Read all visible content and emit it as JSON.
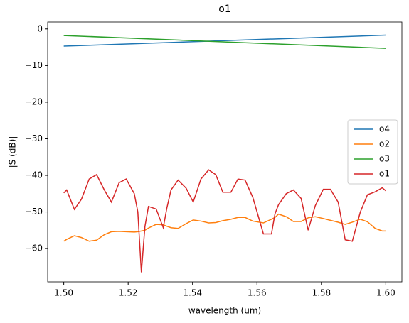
{
  "chart_data": {
    "type": "line",
    "title": "o1",
    "xlabel": "wavelength (um)",
    "ylabel": "|S (dB)|",
    "xlim": [
      1.495,
      1.605
    ],
    "ylim": [
      -69.1,
      1.9
    ],
    "xticks": [
      {
        "value": 1.5,
        "label": "1.50"
      },
      {
        "value": 1.52,
        "label": "1.52"
      },
      {
        "value": 1.54,
        "label": "1.54"
      },
      {
        "value": 1.56,
        "label": "1.56"
      },
      {
        "value": 1.58,
        "label": "1.58"
      },
      {
        "value": 1.6,
        "label": "1.60"
      }
    ],
    "yticks": [
      {
        "value": 0,
        "label": "0"
      },
      {
        "value": -10,
        "label": "−10"
      },
      {
        "value": -20,
        "label": "−20"
      },
      {
        "value": -30,
        "label": "−30"
      },
      {
        "value": -40,
        "label": "−40"
      },
      {
        "value": -50,
        "label": "−50"
      },
      {
        "value": -60,
        "label": "−60"
      }
    ],
    "legend": "center right",
    "series": [
      {
        "name": "o4",
        "color": "#1f77b4",
        "x": [
          1.5,
          1.6
        ],
        "values": [
          -4.7,
          -1.7
        ]
      },
      {
        "name": "o2",
        "color": "#ff7f0e",
        "x": [
          1.5,
          1.5009,
          1.5033,
          1.5055,
          1.5079,
          1.5102,
          1.5126,
          1.5148,
          1.5172,
          1.5194,
          1.5219,
          1.523,
          1.5241,
          1.5252,
          1.5263,
          1.5287,
          1.5309,
          1.532,
          1.5333,
          1.5355,
          1.538,
          1.5402,
          1.5426,
          1.545,
          1.5472,
          1.5494,
          1.5519,
          1.5541,
          1.5563,
          1.5587,
          1.562,
          1.5645,
          1.5656,
          1.5667,
          1.5691,
          1.5713,
          1.5737,
          1.5759,
          1.5781,
          1.5806,
          1.5828,
          1.5852,
          1.5874,
          1.5896,
          1.5921,
          1.5943,
          1.5967,
          1.5989,
          1.6
        ],
        "values": [
          -58.0,
          -57.5,
          -56.5,
          -57.0,
          -58.0,
          -57.7,
          -56.2,
          -55.4,
          -55.3,
          -55.4,
          -55.5,
          -55.4,
          -55.2,
          -55.0,
          -54.4,
          -53.4,
          -53.5,
          -53.9,
          -54.3,
          -54.5,
          -53.2,
          -52.2,
          -52.5,
          -53.0,
          -52.9,
          -52.4,
          -52.0,
          -51.5,
          -51.5,
          -52.5,
          -53.0,
          -52.0,
          -51.5,
          -50.6,
          -51.3,
          -52.6,
          -52.6,
          -51.6,
          -51.3,
          -51.8,
          -52.3,
          -52.8,
          -53.4,
          -52.8,
          -52.0,
          -52.7,
          -54.5,
          -55.2,
          -55.2
        ]
      },
      {
        "name": "o3",
        "color": "#2ca02c",
        "x": [
          1.5,
          1.6
        ],
        "values": [
          -1.8,
          -5.3
        ]
      },
      {
        "name": "o1",
        "color": "#d62728",
        "x": [
          1.5,
          1.5009,
          1.5033,
          1.5055,
          1.5079,
          1.5102,
          1.5126,
          1.5148,
          1.5172,
          1.5194,
          1.5219,
          1.523,
          1.5241,
          1.5252,
          1.5263,
          1.5287,
          1.5309,
          1.532,
          1.5333,
          1.5355,
          1.538,
          1.5402,
          1.5426,
          1.545,
          1.5472,
          1.5494,
          1.5519,
          1.5541,
          1.5563,
          1.5587,
          1.562,
          1.5645,
          1.5656,
          1.5667,
          1.5691,
          1.5713,
          1.5737,
          1.5759,
          1.5781,
          1.5806,
          1.5828,
          1.5852,
          1.5874,
          1.5896,
          1.5921,
          1.5943,
          1.5967,
          1.5989,
          1.6
        ],
        "values": [
          -44.8,
          -44.0,
          -49.3,
          -46.5,
          -41.0,
          -39.8,
          -44.0,
          -47.3,
          -42.0,
          -41.0,
          -45.0,
          -50.0,
          -66.5,
          -54.0,
          -48.5,
          -49.2,
          -54.3,
          -49.0,
          -44.0,
          -41.3,
          -43.5,
          -47.3,
          -41.0,
          -38.5,
          -39.8,
          -44.6,
          -44.6,
          -41.0,
          -41.3,
          -46.0,
          -56.0,
          -56.0,
          -50.5,
          -48.0,
          -45.0,
          -44.0,
          -46.3,
          -55.0,
          -48.3,
          -43.8,
          -43.8,
          -47.3,
          -57.6,
          -58.0,
          -50.0,
          -45.3,
          -44.5,
          -43.4,
          -44.2
        ]
      }
    ]
  }
}
